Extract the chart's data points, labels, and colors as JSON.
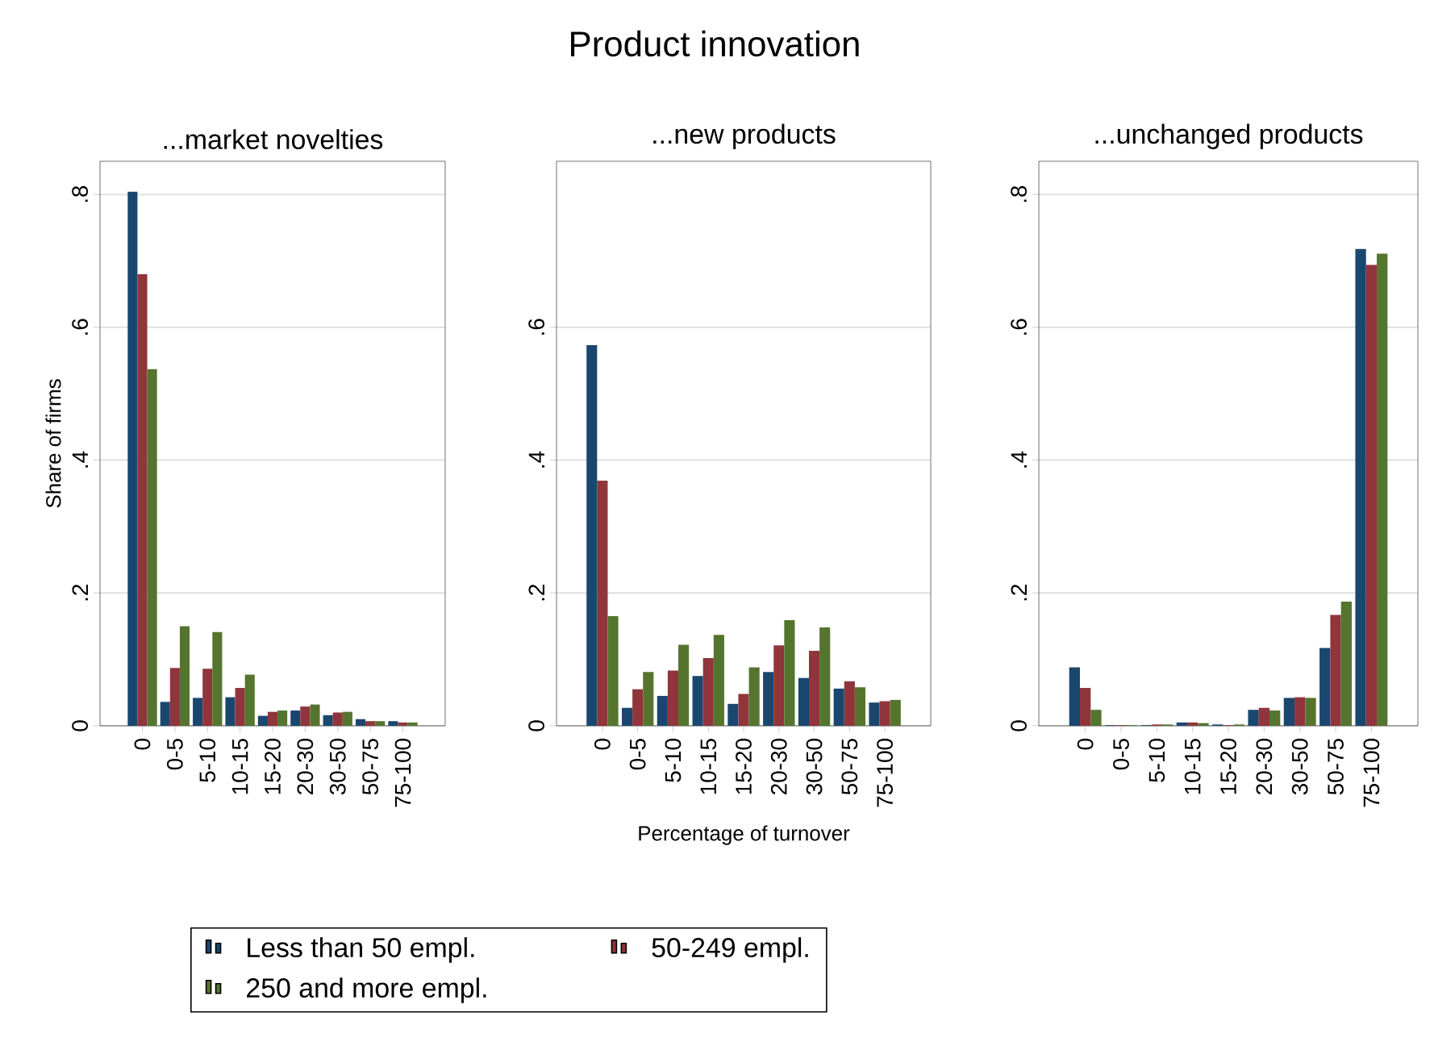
{
  "chart_data": [
    {
      "type": "bar",
      "title": "...market novelties",
      "ylabel": "Share of firms",
      "annotations": [
        "Product innovation"
      ],
      "categories": [
        "0",
        "0-5",
        "5-10",
        "10-15",
        "15-20",
        "20-30",
        "30-50",
        "50-75",
        "75-100"
      ],
      "series": [
        {
          "name": "Less than 50 empl.",
          "color": "#1a476f",
          "values": [
            0.804,
            0.036,
            0.042,
            0.043,
            0.015,
            0.023,
            0.016,
            0.01,
            0.007
          ]
        },
        {
          "name": "50-249 empl.",
          "color": "#90353b",
          "values": [
            0.68,
            0.087,
            0.086,
            0.057,
            0.021,
            0.029,
            0.02,
            0.007,
            0.005
          ]
        },
        {
          "name": "250 and more empl.",
          "color": "#55752f",
          "values": [
            0.537,
            0.15,
            0.141,
            0.077,
            0.023,
            0.032,
            0.021,
            0.007,
            0.005
          ]
        }
      ],
      "ylim": [
        0,
        0.85
      ],
      "yticks": [
        {
          "value": 0,
          "label": "0"
        },
        {
          "value": 0.2,
          "label": ".2"
        },
        {
          "value": 0.4,
          "label": ".4"
        },
        {
          "value": 0.6,
          "label": ".6"
        },
        {
          "value": 0.8,
          "label": ".8"
        }
      ],
      "grid": "y",
      "legend": "bottom"
    },
    {
      "type": "bar",
      "title": "...new products",
      "xlabel": "Percentage of turnover",
      "categories": [
        "0",
        "0-5",
        "5-10",
        "10-15",
        "15-20",
        "20-30",
        "30-50",
        "50-75",
        "75-100"
      ],
      "series": [
        {
          "color": "#1a476f",
          "values": [
            0.573,
            0.027,
            0.045,
            0.075,
            0.033,
            0.081,
            0.072,
            0.056,
            0.035
          ]
        },
        {
          "color": "#90353b",
          "values": [
            0.369,
            0.055,
            0.083,
            0.102,
            0.048,
            0.121,
            0.113,
            0.067,
            0.037
          ]
        },
        {
          "color": "#55752f",
          "values": [
            0.165,
            0.081,
            0.122,
            0.137,
            0.088,
            0.159,
            0.148,
            0.058,
            0.039
          ]
        }
      ],
      "ylim": [
        0,
        0.85
      ],
      "yticks": [
        {
          "value": 0,
          "label": "0"
        },
        {
          "value": 0.2,
          "label": ".2"
        },
        {
          "value": 0.4,
          "label": ".4"
        },
        {
          "value": 0.6,
          "label": ".6"
        }
      ],
      "grid": "y"
    },
    {
      "type": "bar",
      "title": "...unchanged products",
      "categories": [
        "0",
        "0-5",
        "5-10",
        "10-15",
        "15-20",
        "20-30",
        "30-50",
        "50-75",
        "75-100"
      ],
      "series": [
        {
          "color": "#1a476f",
          "values": [
            0.088,
            0.001,
            0.001,
            0.005,
            0.002,
            0.024,
            0.042,
            0.117,
            0.718
          ]
        },
        {
          "color": "#90353b",
          "values": [
            0.057,
            0.001,
            0.002,
            0.005,
            0.001,
            0.027,
            0.043,
            0.167,
            0.694
          ]
        },
        {
          "color": "#55752f",
          "values": [
            0.024,
            0.001,
            0.002,
            0.004,
            0.002,
            0.023,
            0.042,
            0.187,
            0.711
          ]
        }
      ],
      "ylim": [
        0,
        0.85
      ],
      "yticks": [
        {
          "value": 0,
          "label": "0"
        },
        {
          "value": 0.2,
          "label": ".2"
        },
        {
          "value": 0.4,
          "label": ".4"
        },
        {
          "value": 0.6,
          "label": ".6"
        },
        {
          "value": 0.8,
          "label": ".8"
        }
      ],
      "grid": "y"
    }
  ]
}
